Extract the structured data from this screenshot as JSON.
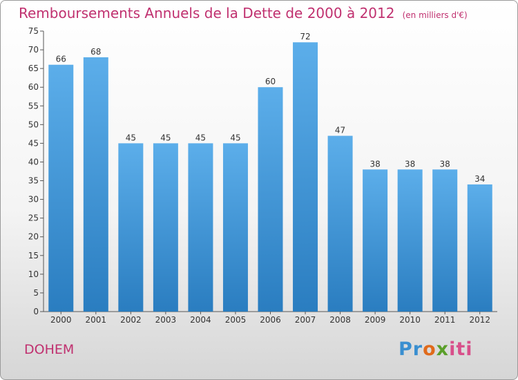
{
  "chart_data": {
    "type": "bar",
    "title": "Remboursements Annuels de la Dette de 2000 à 2012",
    "units": "(en milliers d'€)",
    "categories": [
      "2000",
      "2001",
      "2002",
      "2003",
      "2004",
      "2005",
      "2006",
      "2007",
      "2008",
      "2009",
      "2010",
      "2011",
      "2012"
    ],
    "values": [
      66,
      68,
      45,
      45,
      45,
      45,
      60,
      72,
      47,
      38,
      38,
      38,
      34
    ],
    "ylim": [
      0,
      75
    ],
    "yticks": [
      0,
      5,
      10,
      15,
      20,
      25,
      30,
      35,
      40,
      45,
      50,
      55,
      60,
      65,
      70,
      75
    ],
    "grid": false,
    "bar_color_top": "#5caeea",
    "bar_color_bottom": "#2a7dc0"
  },
  "commune": "DOHEM",
  "logo": {
    "text": "Proxiti",
    "parts": [
      "Pr",
      "o",
      "x",
      "iti"
    ]
  },
  "colors": {
    "title": "#c0306f",
    "axis": "#555555"
  }
}
